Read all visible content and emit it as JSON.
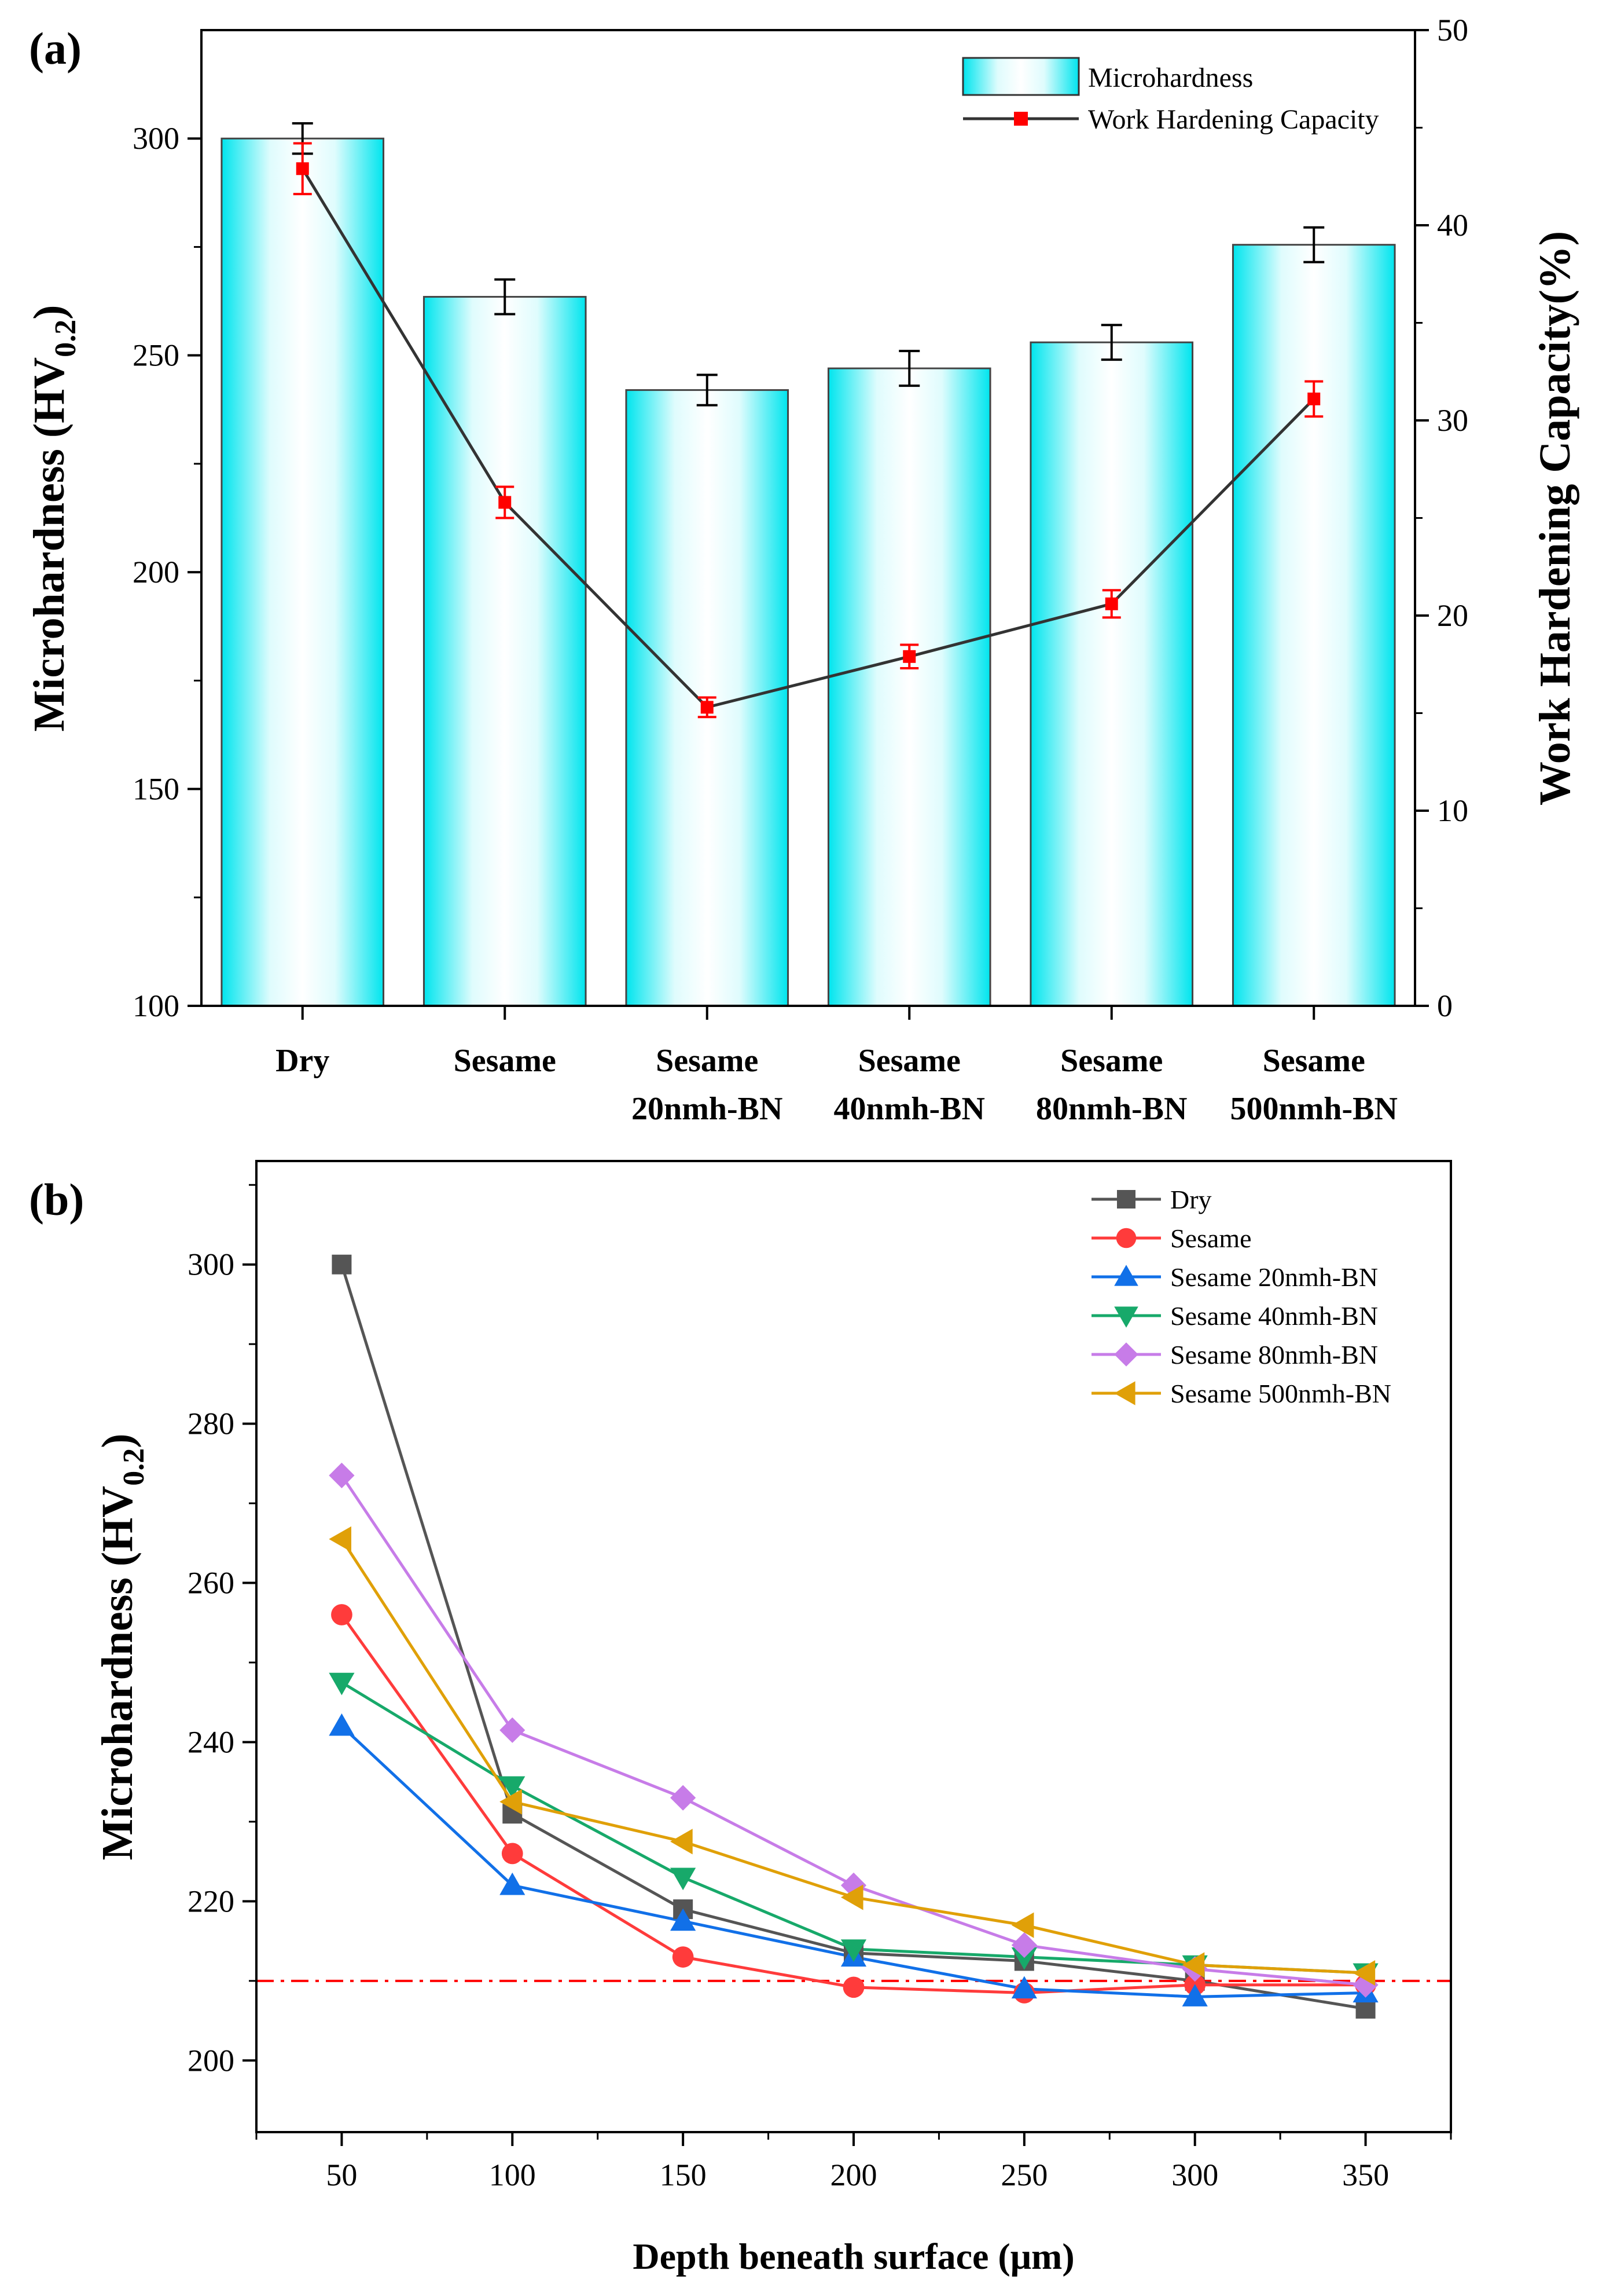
{
  "chart_data": [
    {
      "panel_label": "(a)",
      "type": "bar",
      "categories": [
        [
          "Dry"
        ],
        [
          "Sesame"
        ],
        [
          "Sesame",
          "20nmh-BN"
        ],
        [
          "Sesame",
          "40nmh-BN"
        ],
        [
          "Sesame",
          "80nmh-BN"
        ],
        [
          "Sesame",
          "500nmh-BN"
        ]
      ],
      "series": [
        {
          "name": "Microhardness",
          "kind": "bar",
          "axis": "left",
          "values": [
            300,
            263.5,
            242,
            247,
            253,
            275.5
          ],
          "errors": [
            3.5,
            4,
            3.5,
            4,
            4,
            4
          ],
          "color": "#00e5ee"
        },
        {
          "name": "Work Hardening Capacity",
          "kind": "line",
          "axis": "right",
          "values": [
            42.9,
            25.8,
            15.3,
            17.9,
            20.6,
            31.1
          ],
          "errors": [
            1.3,
            0.8,
            0.5,
            0.6,
            0.7,
            0.9
          ],
          "color": "#333333",
          "marker_color": "#ff0000"
        }
      ],
      "ylabel_main": "Microhardness (HV",
      "ylabel_sub": "0.2",
      "ylabel_close": ")",
      "y2label": "Work Hardening Capacity(%)",
      "ylim": [
        100,
        325
      ],
      "yticks": [
        "100",
        "150",
        "200",
        "250",
        "300"
      ],
      "y2lim": [
        0,
        50
      ],
      "y2ticks": [
        "0",
        "10",
        "20",
        "30",
        "40",
        "50"
      ],
      "legend_position": "top-right"
    },
    {
      "panel_label": "(b)",
      "type": "line",
      "x": [
        50,
        100,
        150,
        200,
        250,
        300,
        350
      ],
      "xticks": [
        "50",
        "100",
        "150",
        "200",
        "250",
        "300",
        "350"
      ],
      "series": [
        {
          "name": "Dry",
          "values": [
            300,
            231,
            219,
            213.5,
            212.5,
            210,
            206.5
          ],
          "color": "#555555",
          "marker": "square"
        },
        {
          "name": "Sesame",
          "values": [
            256,
            226,
            213,
            209.2,
            208.5,
            209.5,
            209.5
          ],
          "color": "#ff3b3b",
          "marker": "circle"
        },
        {
          "name": "Sesame 20nmh-BN",
          "values": [
            242,
            222,
            217.5,
            213,
            209,
            208,
            208.5
          ],
          "color": "#1170e8",
          "marker": "triangle-up"
        },
        {
          "name": "Sesame 40nmh-BN",
          "values": [
            247.5,
            234.5,
            223,
            214,
            213,
            212,
            211
          ],
          "color": "#17a96a",
          "marker": "triangle-down"
        },
        {
          "name": "Sesame 80nmh-BN",
          "values": [
            273.5,
            241.5,
            233,
            222,
            214.5,
            211.5,
            209.5
          ],
          "color": "#c77ce8",
          "marker": "diamond"
        },
        {
          "name": "Sesame 500nmh-BN",
          "values": [
            265.5,
            232.5,
            227.5,
            220.5,
            217,
            212,
            211
          ],
          "color": "#e0a008",
          "marker": "triangle-left"
        }
      ],
      "reference_line": {
        "y": 210,
        "color": "#ff0000",
        "style": "dash-dot"
      },
      "xlabel": "Depth beneath surface (μm)",
      "ylabel_main": "Microhardness (HV",
      "ylabel_sub": "0.2",
      "ylabel_close": ")",
      "xlim": [
        25,
        375
      ],
      "ylim": [
        191,
        313
      ],
      "yticks": [
        "200",
        "220",
        "240",
        "260",
        "280",
        "300"
      ],
      "legend_position": "top-right"
    }
  ]
}
